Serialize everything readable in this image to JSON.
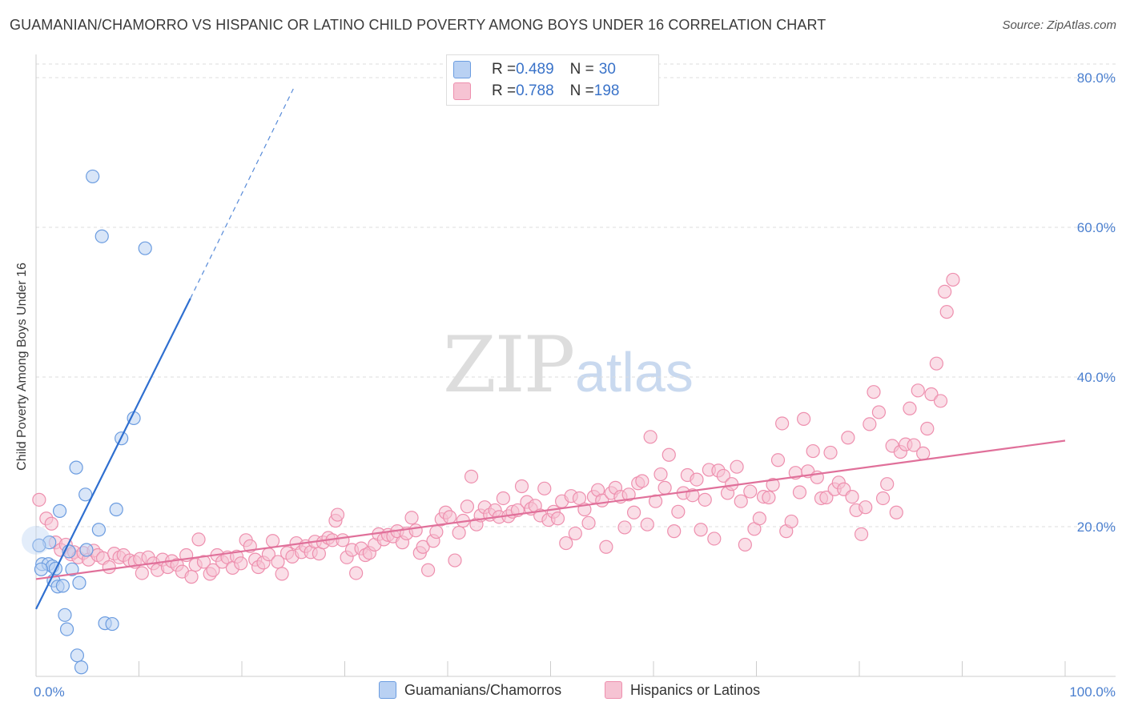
{
  "title": "GUAMANIAN/CHAMORRO VS HISPANIC OR LATINO CHILD POVERTY AMONG BOYS UNDER 16 CORRELATION CHART",
  "source": "Source: ZipAtlas.com",
  "watermark": {
    "zip": "ZIP",
    "atlas": "atlas"
  },
  "colors": {
    "blue_fill": "#b9d1f3",
    "blue_stroke": "#6b9ce0",
    "blue_line": "#2f6fd0",
    "pink_fill": "#f6c3d3",
    "pink_stroke": "#ee8fae",
    "pink_line": "#e0709a",
    "tick_text": "#4a7fcf",
    "grid": "#dddddd"
  },
  "legend_top": {
    "rows": [
      {
        "r_label": "R = ",
        "r_value": "0.489",
        "n_label": "N = ",
        "n_value": "30"
      },
      {
        "r_label": "R = ",
        "r_value": "0.788",
        "n_label": "N = ",
        "n_value": "198"
      }
    ]
  },
  "legend_bottom": {
    "items": [
      {
        "label": "Guamanians/Chamorros"
      },
      {
        "label": "Hispanics or Latinos"
      }
    ]
  },
  "chart_data": {
    "type": "scatter",
    "title": "GUAMANIAN/CHAMORRO VS HISPANIC OR LATINO CHILD POVERTY AMONG BOYS UNDER 16 CORRELATION CHART",
    "xlabel": "",
    "ylabel": "Child Poverty Among Boys Under 16",
    "xlim": [
      0,
      100
    ],
    "ylim": [
      0,
      80
    ],
    "x_tick_labels": [
      "0.0%",
      "100.0%"
    ],
    "y_ticks": [
      20,
      40,
      60,
      80
    ],
    "y_tick_labels": [
      "20.0%",
      "40.0%",
      "60.0%",
      "80.0%"
    ],
    "grid": true,
    "legend_placement": "top-center",
    "series": [
      {
        "name": "Guamanians/Chamorros",
        "r": 0.489,
        "n": 30,
        "trend": {
          "x0": 0,
          "y0": 9.0,
          "x1": 15,
          "y1": 50.5,
          "dashed_to_x": 25,
          "dashed_to_y": 78.5
        },
        "points": [
          [
            5.5,
            66.8
          ],
          [
            6.4,
            58.8
          ],
          [
            10.6,
            57.2
          ],
          [
            9.5,
            34.5
          ],
          [
            8.3,
            31.8
          ],
          [
            3.9,
            27.9
          ],
          [
            4.8,
            24.3
          ],
          [
            2.3,
            22.1
          ],
          [
            7.8,
            22.3
          ],
          [
            6.1,
            19.6
          ],
          [
            1.3,
            17.9
          ],
          [
            0.3,
            17.5
          ],
          [
            3.2,
            16.7
          ],
          [
            4.9,
            16.9
          ],
          [
            0.6,
            15.0
          ],
          [
            1.2,
            15.0
          ],
          [
            1.6,
            14.7
          ],
          [
            0.5,
            14.3
          ],
          [
            1.9,
            14.4
          ],
          [
            3.5,
            14.3
          ],
          [
            1.7,
            12.8
          ],
          [
            2.1,
            12.0
          ],
          [
            2.6,
            12.1
          ],
          [
            4.2,
            12.5
          ],
          [
            2.8,
            8.2
          ],
          [
            6.7,
            7.1
          ],
          [
            7.4,
            7.0
          ],
          [
            3.0,
            6.3
          ],
          [
            4.0,
            2.8
          ],
          [
            4.4,
            1.2
          ]
        ]
      },
      {
        "name": "Hispanics or Latinos",
        "r": 0.788,
        "n": 198,
        "trend": {
          "x0": 0,
          "y0": 13.0,
          "x1": 100,
          "y1": 31.5
        },
        "points": [
          [
            0.3,
            23.6
          ],
          [
            1.0,
            21.1
          ],
          [
            1.5,
            20.4
          ],
          [
            1.9,
            17.9
          ],
          [
            2.4,
            16.9
          ],
          [
            2.9,
            17.6
          ],
          [
            3.4,
            16.3
          ],
          [
            3.7,
            16.6
          ],
          [
            4.1,
            15.9
          ],
          [
            4.6,
            16.5
          ],
          [
            5.1,
            15.6
          ],
          [
            5.6,
            16.8
          ],
          [
            6.0,
            16.2
          ],
          [
            6.5,
            15.8
          ],
          [
            7.1,
            14.6
          ],
          [
            7.6,
            16.4
          ],
          [
            8.1,
            15.9
          ],
          [
            8.5,
            16.2
          ],
          [
            9.1,
            15.5
          ],
          [
            9.6,
            15.3
          ],
          [
            10.1,
            15.7
          ],
          [
            10.3,
            13.8
          ],
          [
            10.9,
            15.9
          ],
          [
            11.4,
            15.1
          ],
          [
            11.8,
            14.2
          ],
          [
            12.3,
            15.6
          ],
          [
            12.8,
            14.6
          ],
          [
            13.2,
            15.4
          ],
          [
            13.7,
            14.9
          ],
          [
            14.2,
            14.0
          ],
          [
            14.6,
            16.2
          ],
          [
            15.1,
            13.3
          ],
          [
            15.5,
            14.9
          ],
          [
            15.8,
            18.3
          ],
          [
            16.3,
            15.3
          ],
          [
            16.9,
            13.7
          ],
          [
            17.2,
            14.2
          ],
          [
            17.6,
            16.2
          ],
          [
            18.1,
            15.3
          ],
          [
            18.6,
            15.9
          ],
          [
            19.1,
            14.5
          ],
          [
            19.5,
            16.0
          ],
          [
            19.9,
            15.1
          ],
          [
            20.4,
            18.2
          ],
          [
            20.8,
            17.4
          ],
          [
            21.3,
            15.6
          ],
          [
            21.6,
            14.6
          ],
          [
            22.1,
            15.2
          ],
          [
            22.6,
            16.3
          ],
          [
            23.0,
            18.1
          ],
          [
            23.5,
            15.3
          ],
          [
            23.9,
            13.7
          ],
          [
            24.4,
            16.5
          ],
          [
            24.9,
            16.0
          ],
          [
            25.3,
            17.8
          ],
          [
            25.8,
            16.6
          ],
          [
            26.2,
            17.4
          ],
          [
            26.7,
            16.6
          ],
          [
            27.1,
            18.0
          ],
          [
            27.5,
            16.4
          ],
          [
            27.9,
            17.9
          ],
          [
            28.4,
            18.5
          ],
          [
            28.8,
            18.2
          ],
          [
            29.1,
            20.8
          ],
          [
            29.3,
            21.6
          ],
          [
            29.8,
            18.2
          ],
          [
            30.2,
            15.9
          ],
          [
            30.7,
            16.9
          ],
          [
            31.1,
            13.8
          ],
          [
            31.6,
            17.1
          ],
          [
            32.0,
            16.2
          ],
          [
            32.4,
            16.5
          ],
          [
            32.9,
            17.6
          ],
          [
            33.3,
            19.0
          ],
          [
            33.8,
            18.3
          ],
          [
            34.2,
            18.9
          ],
          [
            34.7,
            18.7
          ],
          [
            35.1,
            19.4
          ],
          [
            35.6,
            17.9
          ],
          [
            36.0,
            19.1
          ],
          [
            36.5,
            21.2
          ],
          [
            36.9,
            19.5
          ],
          [
            37.3,
            16.5
          ],
          [
            37.6,
            17.3
          ],
          [
            38.1,
            14.2
          ],
          [
            38.6,
            18.1
          ],
          [
            38.9,
            19.3
          ],
          [
            39.4,
            21.0
          ],
          [
            39.8,
            21.9
          ],
          [
            40.2,
            21.3
          ],
          [
            40.7,
            15.5
          ],
          [
            41.1,
            19.2
          ],
          [
            41.5,
            20.8
          ],
          [
            41.9,
            22.7
          ],
          [
            42.3,
            26.7
          ],
          [
            42.8,
            20.3
          ],
          [
            43.2,
            21.5
          ],
          [
            43.6,
            22.6
          ],
          [
            44.1,
            21.6
          ],
          [
            44.6,
            22.2
          ],
          [
            45.0,
            21.3
          ],
          [
            45.4,
            23.8
          ],
          [
            45.9,
            21.4
          ],
          [
            46.3,
            22.0
          ],
          [
            46.8,
            22.2
          ],
          [
            47.2,
            25.4
          ],
          [
            47.7,
            23.3
          ],
          [
            48.1,
            22.4
          ],
          [
            48.5,
            22.8
          ],
          [
            49.0,
            21.5
          ],
          [
            49.4,
            25.1
          ],
          [
            49.8,
            20.9
          ],
          [
            50.3,
            22.0
          ],
          [
            50.7,
            21.1
          ],
          [
            51.1,
            23.4
          ],
          [
            51.5,
            17.8
          ],
          [
            52.0,
            24.1
          ],
          [
            52.4,
            19.1
          ],
          [
            52.8,
            23.8
          ],
          [
            53.3,
            22.3
          ],
          [
            53.7,
            20.5
          ],
          [
            54.2,
            24.0
          ],
          [
            54.6,
            24.9
          ],
          [
            55.0,
            23.5
          ],
          [
            55.4,
            17.3
          ],
          [
            55.9,
            24.5
          ],
          [
            56.3,
            25.2
          ],
          [
            56.8,
            24.0
          ],
          [
            57.2,
            19.9
          ],
          [
            57.6,
            24.3
          ],
          [
            58.1,
            21.9
          ],
          [
            58.5,
            25.8
          ],
          [
            58.9,
            26.1
          ],
          [
            59.4,
            20.3
          ],
          [
            59.7,
            32.0
          ],
          [
            60.2,
            23.4
          ],
          [
            60.7,
            27.0
          ],
          [
            61.1,
            25.2
          ],
          [
            61.5,
            29.6
          ],
          [
            62.0,
            19.4
          ],
          [
            62.4,
            22.0
          ],
          [
            62.9,
            24.5
          ],
          [
            63.3,
            26.9
          ],
          [
            63.8,
            24.2
          ],
          [
            64.2,
            26.3
          ],
          [
            64.6,
            19.6
          ],
          [
            65.0,
            23.6
          ],
          [
            65.4,
            27.6
          ],
          [
            65.9,
            18.4
          ],
          [
            66.3,
            27.5
          ],
          [
            66.8,
            26.8
          ],
          [
            67.2,
            24.5
          ],
          [
            67.6,
            25.7
          ],
          [
            68.1,
            28.0
          ],
          [
            68.5,
            23.4
          ],
          [
            68.9,
            17.6
          ],
          [
            69.4,
            24.7
          ],
          [
            69.8,
            19.7
          ],
          [
            70.3,
            21.1
          ],
          [
            70.7,
            24.0
          ],
          [
            71.2,
            23.9
          ],
          [
            71.6,
            25.6
          ],
          [
            72.1,
            28.9
          ],
          [
            72.5,
            33.8
          ],
          [
            72.9,
            19.4
          ],
          [
            73.4,
            20.7
          ],
          [
            73.8,
            27.2
          ],
          [
            74.2,
            24.6
          ],
          [
            74.6,
            34.4
          ],
          [
            75.0,
            27.4
          ],
          [
            75.5,
            30.1
          ],
          [
            75.9,
            26.6
          ],
          [
            76.3,
            23.8
          ],
          [
            76.8,
            23.9
          ],
          [
            77.2,
            29.9
          ],
          [
            77.6,
            25.0
          ],
          [
            78.0,
            25.9
          ],
          [
            78.5,
            25.0
          ],
          [
            78.9,
            31.9
          ],
          [
            79.3,
            24.0
          ],
          [
            79.7,
            22.2
          ],
          [
            80.2,
            19.0
          ],
          [
            80.6,
            22.6
          ],
          [
            81.0,
            33.7
          ],
          [
            81.4,
            38.0
          ],
          [
            81.9,
            35.3
          ],
          [
            82.3,
            23.8
          ],
          [
            82.7,
            25.7
          ],
          [
            83.2,
            30.8
          ],
          [
            83.6,
            21.9
          ],
          [
            84.0,
            30.0
          ],
          [
            84.5,
            31.0
          ],
          [
            84.9,
            35.8
          ],
          [
            85.3,
            30.9
          ],
          [
            85.7,
            38.2
          ],
          [
            86.2,
            29.8
          ],
          [
            86.6,
            33.1
          ],
          [
            87.0,
            37.7
          ],
          [
            87.5,
            41.8
          ],
          [
            87.9,
            36.8
          ],
          [
            88.3,
            51.4
          ],
          [
            88.5,
            48.7
          ],
          [
            89.1,
            53.0
          ]
        ]
      }
    ]
  }
}
